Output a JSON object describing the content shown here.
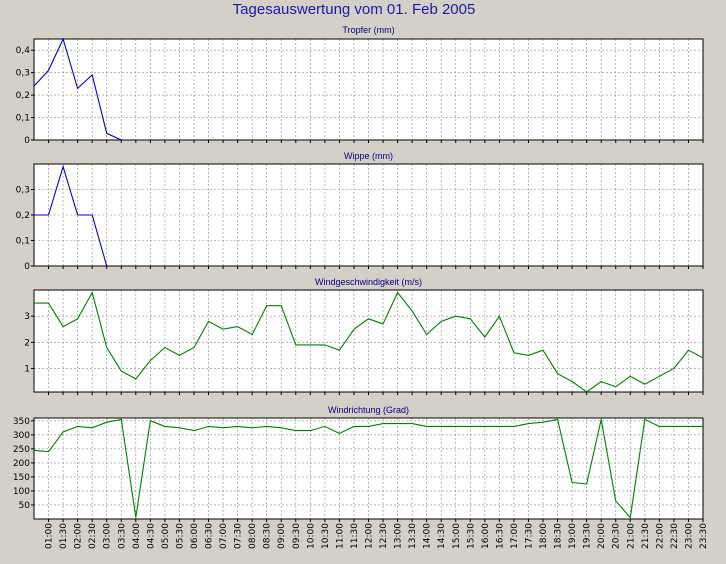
{
  "title": "Tagesauswertung vom 01. Feb 2005",
  "x_ticks": [
    "01:00",
    "01:30",
    "02:00",
    "02:30",
    "03:00",
    "03:30",
    "04:00",
    "04:30",
    "05:00",
    "05:30",
    "06:00",
    "06:30",
    "07:00",
    "07:30",
    "08:00",
    "08:30",
    "09:00",
    "09:30",
    "10:00",
    "10:30",
    "11:00",
    "11:30",
    "12:00",
    "12:30",
    "13:00",
    "13:30",
    "14:00",
    "14:30",
    "15:00",
    "15:30",
    "16:00",
    "16:30",
    "17:00",
    "17:30",
    "18:00",
    "18:30",
    "19:00",
    "19:30",
    "20:00",
    "20:30",
    "21:00",
    "21:30",
    "22:00",
    "22:30",
    "23:00",
    "23:30"
  ],
  "chart_data": [
    {
      "type": "line",
      "title": "Tropfer (mm)",
      "color": "#0000cc",
      "ylim": [
        0,
        0.45
      ],
      "yticks": [
        0,
        0.1,
        0.2,
        0.3,
        0.4
      ],
      "ytick_labels": [
        "0",
        "0,1",
        "0,2",
        "0,3",
        "0,4"
      ],
      "x": [
        0.5,
        1.0,
        1.5,
        2.0,
        2.5,
        3.0,
        3.5
      ],
      "values": [
        0.24,
        0.31,
        0.45,
        0.23,
        0.29,
        0.03,
        0.0
      ]
    },
    {
      "type": "line",
      "title": "Wippe (mm)",
      "color": "#0000cc",
      "ylim": [
        0,
        0.4
      ],
      "yticks": [
        0,
        0.1,
        0.2,
        0.3
      ],
      "ytick_labels": [
        "0",
        "0,1",
        "0,2",
        "0,3"
      ],
      "x": [
        0.5,
        1.0,
        1.5,
        2.0,
        2.5,
        3.0
      ],
      "values": [
        0.2,
        0.2,
        0.39,
        0.2,
        0.2,
        0.0
      ]
    },
    {
      "type": "line",
      "title": "Windgeschwindigkeit (m/s)",
      "color": "#008000",
      "ylim": [
        0.1,
        4.0
      ],
      "yticks": [
        1,
        2,
        3
      ],
      "ytick_labels": [
        "1",
        "2",
        "3"
      ],
      "x": [
        0.5,
        1.0,
        1.5,
        2.0,
        2.5,
        3.0,
        3.5,
        4.0,
        4.5,
        5.0,
        5.5,
        6.0,
        6.5,
        7.0,
        7.5,
        8.0,
        8.5,
        9.0,
        9.5,
        10.0,
        10.5,
        11.0,
        11.5,
        12.0,
        12.5,
        13.0,
        13.5,
        14.0,
        14.5,
        15.0,
        15.5,
        16.0,
        16.5,
        17.0,
        17.5,
        18.0,
        18.5,
        19.0,
        19.5,
        20.0,
        20.5,
        21.0,
        21.5,
        22.0,
        22.5,
        23.0,
        23.5
      ],
      "values": [
        3.5,
        3.5,
        2.6,
        2.9,
        3.9,
        1.8,
        0.9,
        0.6,
        1.3,
        1.8,
        1.5,
        1.8,
        2.8,
        2.5,
        2.6,
        2.3,
        3.4,
        3.4,
        1.9,
        1.9,
        1.9,
        1.7,
        2.5,
        2.9,
        2.7,
        3.9,
        3.2,
        2.3,
        2.8,
        3.0,
        2.9,
        2.2,
        3.0,
        1.6,
        1.5,
        1.7,
        0.8,
        0.5,
        0.1,
        0.5,
        0.3,
        0.7,
        0.4,
        0.7,
        1.0,
        1.7,
        1.4
      ]
    },
    {
      "type": "line",
      "title": "Windrichtung (Grad)",
      "color": "#008000",
      "ylim": [
        0,
        360
      ],
      "yticks": [
        50,
        100,
        150,
        200,
        250,
        300,
        350
      ],
      "ytick_labels": [
        "50",
        "100",
        "150",
        "200",
        "250",
        "300",
        "350"
      ],
      "x": [
        0.5,
        1.0,
        1.5,
        2.0,
        2.5,
        3.0,
        3.5,
        4.0,
        4.5,
        5.0,
        5.5,
        6.0,
        6.5,
        7.0,
        7.5,
        8.0,
        8.5,
        9.0,
        9.5,
        10.0,
        10.5,
        11.0,
        11.5,
        12.0,
        12.5,
        13.0,
        13.5,
        14.0,
        14.5,
        15.0,
        15.5,
        16.0,
        16.5,
        17.0,
        17.5,
        18.0,
        18.5,
        19.0,
        19.5,
        20.0,
        20.5,
        21.0,
        21.5,
        22.0,
        22.5,
        23.0,
        23.5
      ],
      "values": [
        245,
        240,
        310,
        330,
        325,
        345,
        355,
        5,
        350,
        330,
        325,
        315,
        330,
        325,
        330,
        325,
        330,
        325,
        315,
        315,
        330,
        305,
        330,
        330,
        340,
        340,
        340,
        330,
        330,
        330,
        330,
        330,
        330,
        330,
        340,
        345,
        355,
        130,
        125,
        355,
        65,
        5,
        355,
        330,
        330,
        330,
        330
      ]
    }
  ]
}
